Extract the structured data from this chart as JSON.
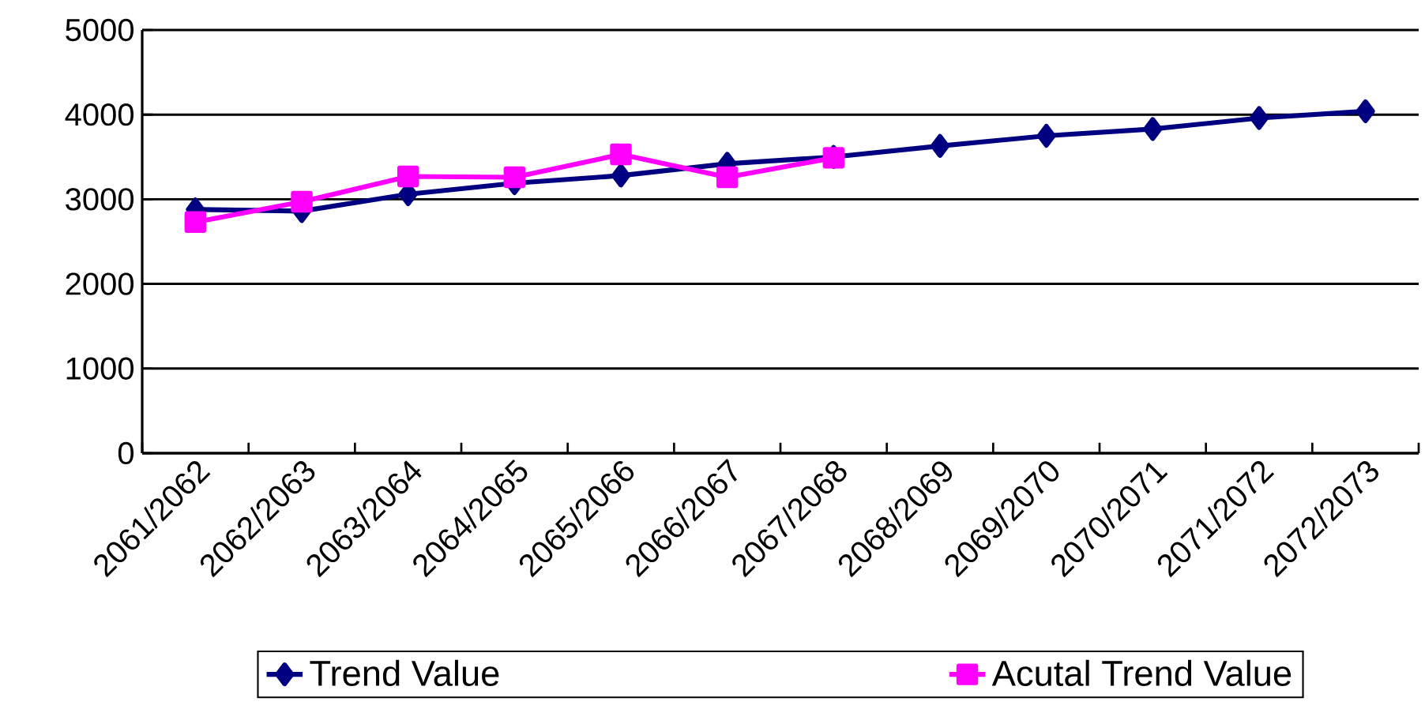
{
  "chart_data": {
    "type": "line",
    "categories": [
      "2061/2062",
      "2062/2063",
      "2063/2064",
      "2064/2065",
      "2065/2066",
      "2066/2067",
      "2067/2068",
      "2068/2069",
      "2069/2070",
      "2070/2071",
      "2071/2072",
      "2072/2073"
    ],
    "series": [
      {
        "name": "Trend Value",
        "color": "#000080",
        "marker": "diamond",
        "values": [
          2880,
          2860,
          3060,
          3190,
          3280,
          3420,
          3500,
          3630,
          3750,
          3830,
          3960,
          4040
        ]
      },
      {
        "name": "Acutal Trend Value",
        "color": "#ff00ff",
        "marker": "square",
        "values": [
          2730,
          2970,
          3270,
          3260,
          3530,
          3260,
          3490,
          null,
          null,
          null,
          null,
          null
        ]
      }
    ],
    "ylim": [
      0,
      5000
    ],
    "yticks": [
      0,
      1000,
      2000,
      3000,
      4000,
      5000
    ],
    "grid": "y",
    "legend": "bottom",
    "line_style": "solid"
  }
}
